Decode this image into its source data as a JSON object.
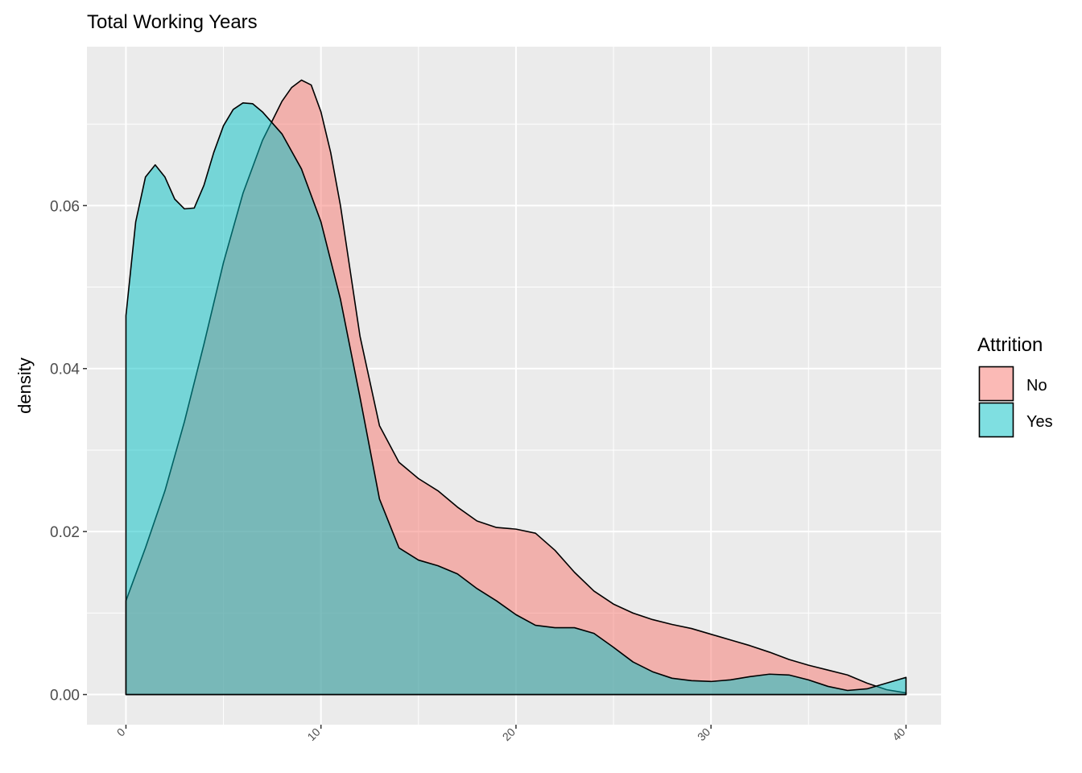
{
  "chart_data": {
    "type": "area",
    "title": "Total Working Years",
    "xlabel": "",
    "ylabel": "density",
    "xlim": [
      -2,
      41.8
    ],
    "ylim": [
      -0.0037,
      0.0795
    ],
    "x_ticks": [
      0,
      10,
      20,
      30,
      40
    ],
    "y_ticks": [
      0.0,
      0.02,
      0.04,
      0.06
    ],
    "y_tick_labels": [
      "0.00",
      "0.02",
      "0.04",
      "0.06"
    ],
    "grid": true,
    "legend": {
      "title": "Attrition",
      "position": "right"
    },
    "series": [
      {
        "name": "No",
        "color": "#F8766D",
        "x": [
          0,
          1,
          2,
          3,
          4,
          5,
          6,
          7,
          8,
          8.5,
          9,
          9.5,
          10,
          10.5,
          11,
          11.5,
          12,
          13,
          14,
          15,
          16,
          17,
          18,
          19,
          20,
          21,
          22,
          23,
          24,
          25,
          26,
          27,
          28,
          29,
          30,
          31,
          32,
          33,
          34,
          35,
          36,
          37,
          38,
          39,
          40
        ],
        "y": [
          0.0115,
          0.018,
          0.025,
          0.0335,
          0.043,
          0.053,
          0.0615,
          0.068,
          0.0728,
          0.0745,
          0.0754,
          0.0748,
          0.0715,
          0.0665,
          0.06,
          0.052,
          0.044,
          0.033,
          0.0285,
          0.0265,
          0.025,
          0.023,
          0.0213,
          0.0205,
          0.0203,
          0.0198,
          0.0177,
          0.015,
          0.0127,
          0.0111,
          0.01,
          0.0092,
          0.0086,
          0.0081,
          0.0074,
          0.0067,
          0.006,
          0.0052,
          0.0043,
          0.0036,
          0.003,
          0.0024,
          0.0014,
          0.0006,
          0.0002
        ]
      },
      {
        "name": "Yes",
        "color": "#00BFC4",
        "x": [
          0,
          0.5,
          1,
          1.5,
          2,
          2.5,
          3,
          3.5,
          4,
          4.5,
          5,
          5.5,
          6,
          6.5,
          7,
          8,
          9,
          10,
          11,
          12,
          13,
          14,
          15,
          16,
          17,
          18,
          19,
          20,
          21,
          22,
          23,
          24,
          25,
          26,
          27,
          28,
          29,
          30,
          31,
          32,
          33,
          34,
          35,
          36,
          37,
          38,
          39,
          40
        ],
        "y": [
          0.0465,
          0.058,
          0.0635,
          0.065,
          0.0635,
          0.0608,
          0.0596,
          0.0597,
          0.0625,
          0.0665,
          0.0698,
          0.0718,
          0.0726,
          0.0725,
          0.0715,
          0.0688,
          0.0645,
          0.058,
          0.0485,
          0.0365,
          0.024,
          0.018,
          0.0165,
          0.0158,
          0.0148,
          0.013,
          0.0115,
          0.0098,
          0.0085,
          0.0082,
          0.0082,
          0.0075,
          0.0058,
          0.004,
          0.0028,
          0.002,
          0.0017,
          0.0016,
          0.0018,
          0.0022,
          0.0025,
          0.0024,
          0.0018,
          0.001,
          0.0005,
          0.0007,
          0.0014,
          0.0021
        ]
      }
    ]
  }
}
